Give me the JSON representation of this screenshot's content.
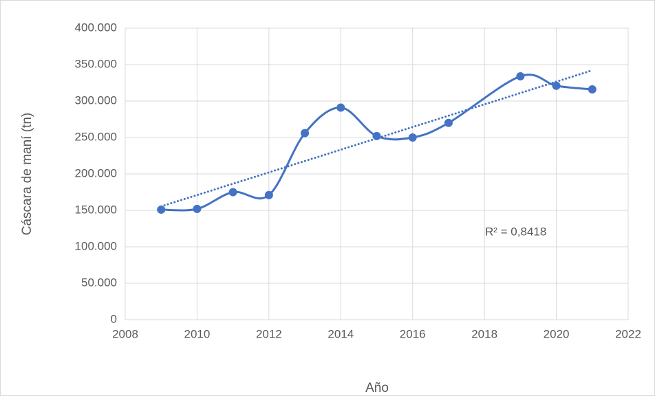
{
  "chart_data": {
    "type": "line",
    "x": [
      2009,
      2010,
      2011,
      2012,
      2013,
      2014,
      2015,
      2016,
      2017,
      2019,
      2020,
      2021
    ],
    "series": [
      {
        "name": "Cáscara de maní",
        "color": "#4472c4",
        "values": [
          151000,
          152000,
          175000,
          171000,
          256000,
          291000,
          252000,
          250000,
          270000,
          334000,
          321000,
          316000
        ]
      }
    ],
    "smooth": true,
    "trendline": "linear",
    "annotation": "R² = 0,8418",
    "xlabel": "Año",
    "ylabel": "Cáscara de maní (tn)",
    "xlim": [
      2008,
      2022
    ],
    "xticks": [
      2008,
      2010,
      2012,
      2014,
      2016,
      2018,
      2020,
      2022
    ],
    "ylim": [
      0,
      400000
    ],
    "yticks": [
      0,
      {
        "value": 50000,
        "label": "50.000"
      },
      {
        "value": 100000,
        "label": "100.000"
      },
      {
        "value": 150000,
        "label": "150.000"
      },
      {
        "value": 200000,
        "label": "200.000"
      },
      {
        "value": 250000,
        "label": "250.000"
      },
      {
        "value": 300000,
        "label": "300.000"
      },
      {
        "value": 350000,
        "label": "350.000"
      },
      {
        "value": 400000,
        "label": "400.000"
      }
    ],
    "grid": true,
    "legend": false
  }
}
